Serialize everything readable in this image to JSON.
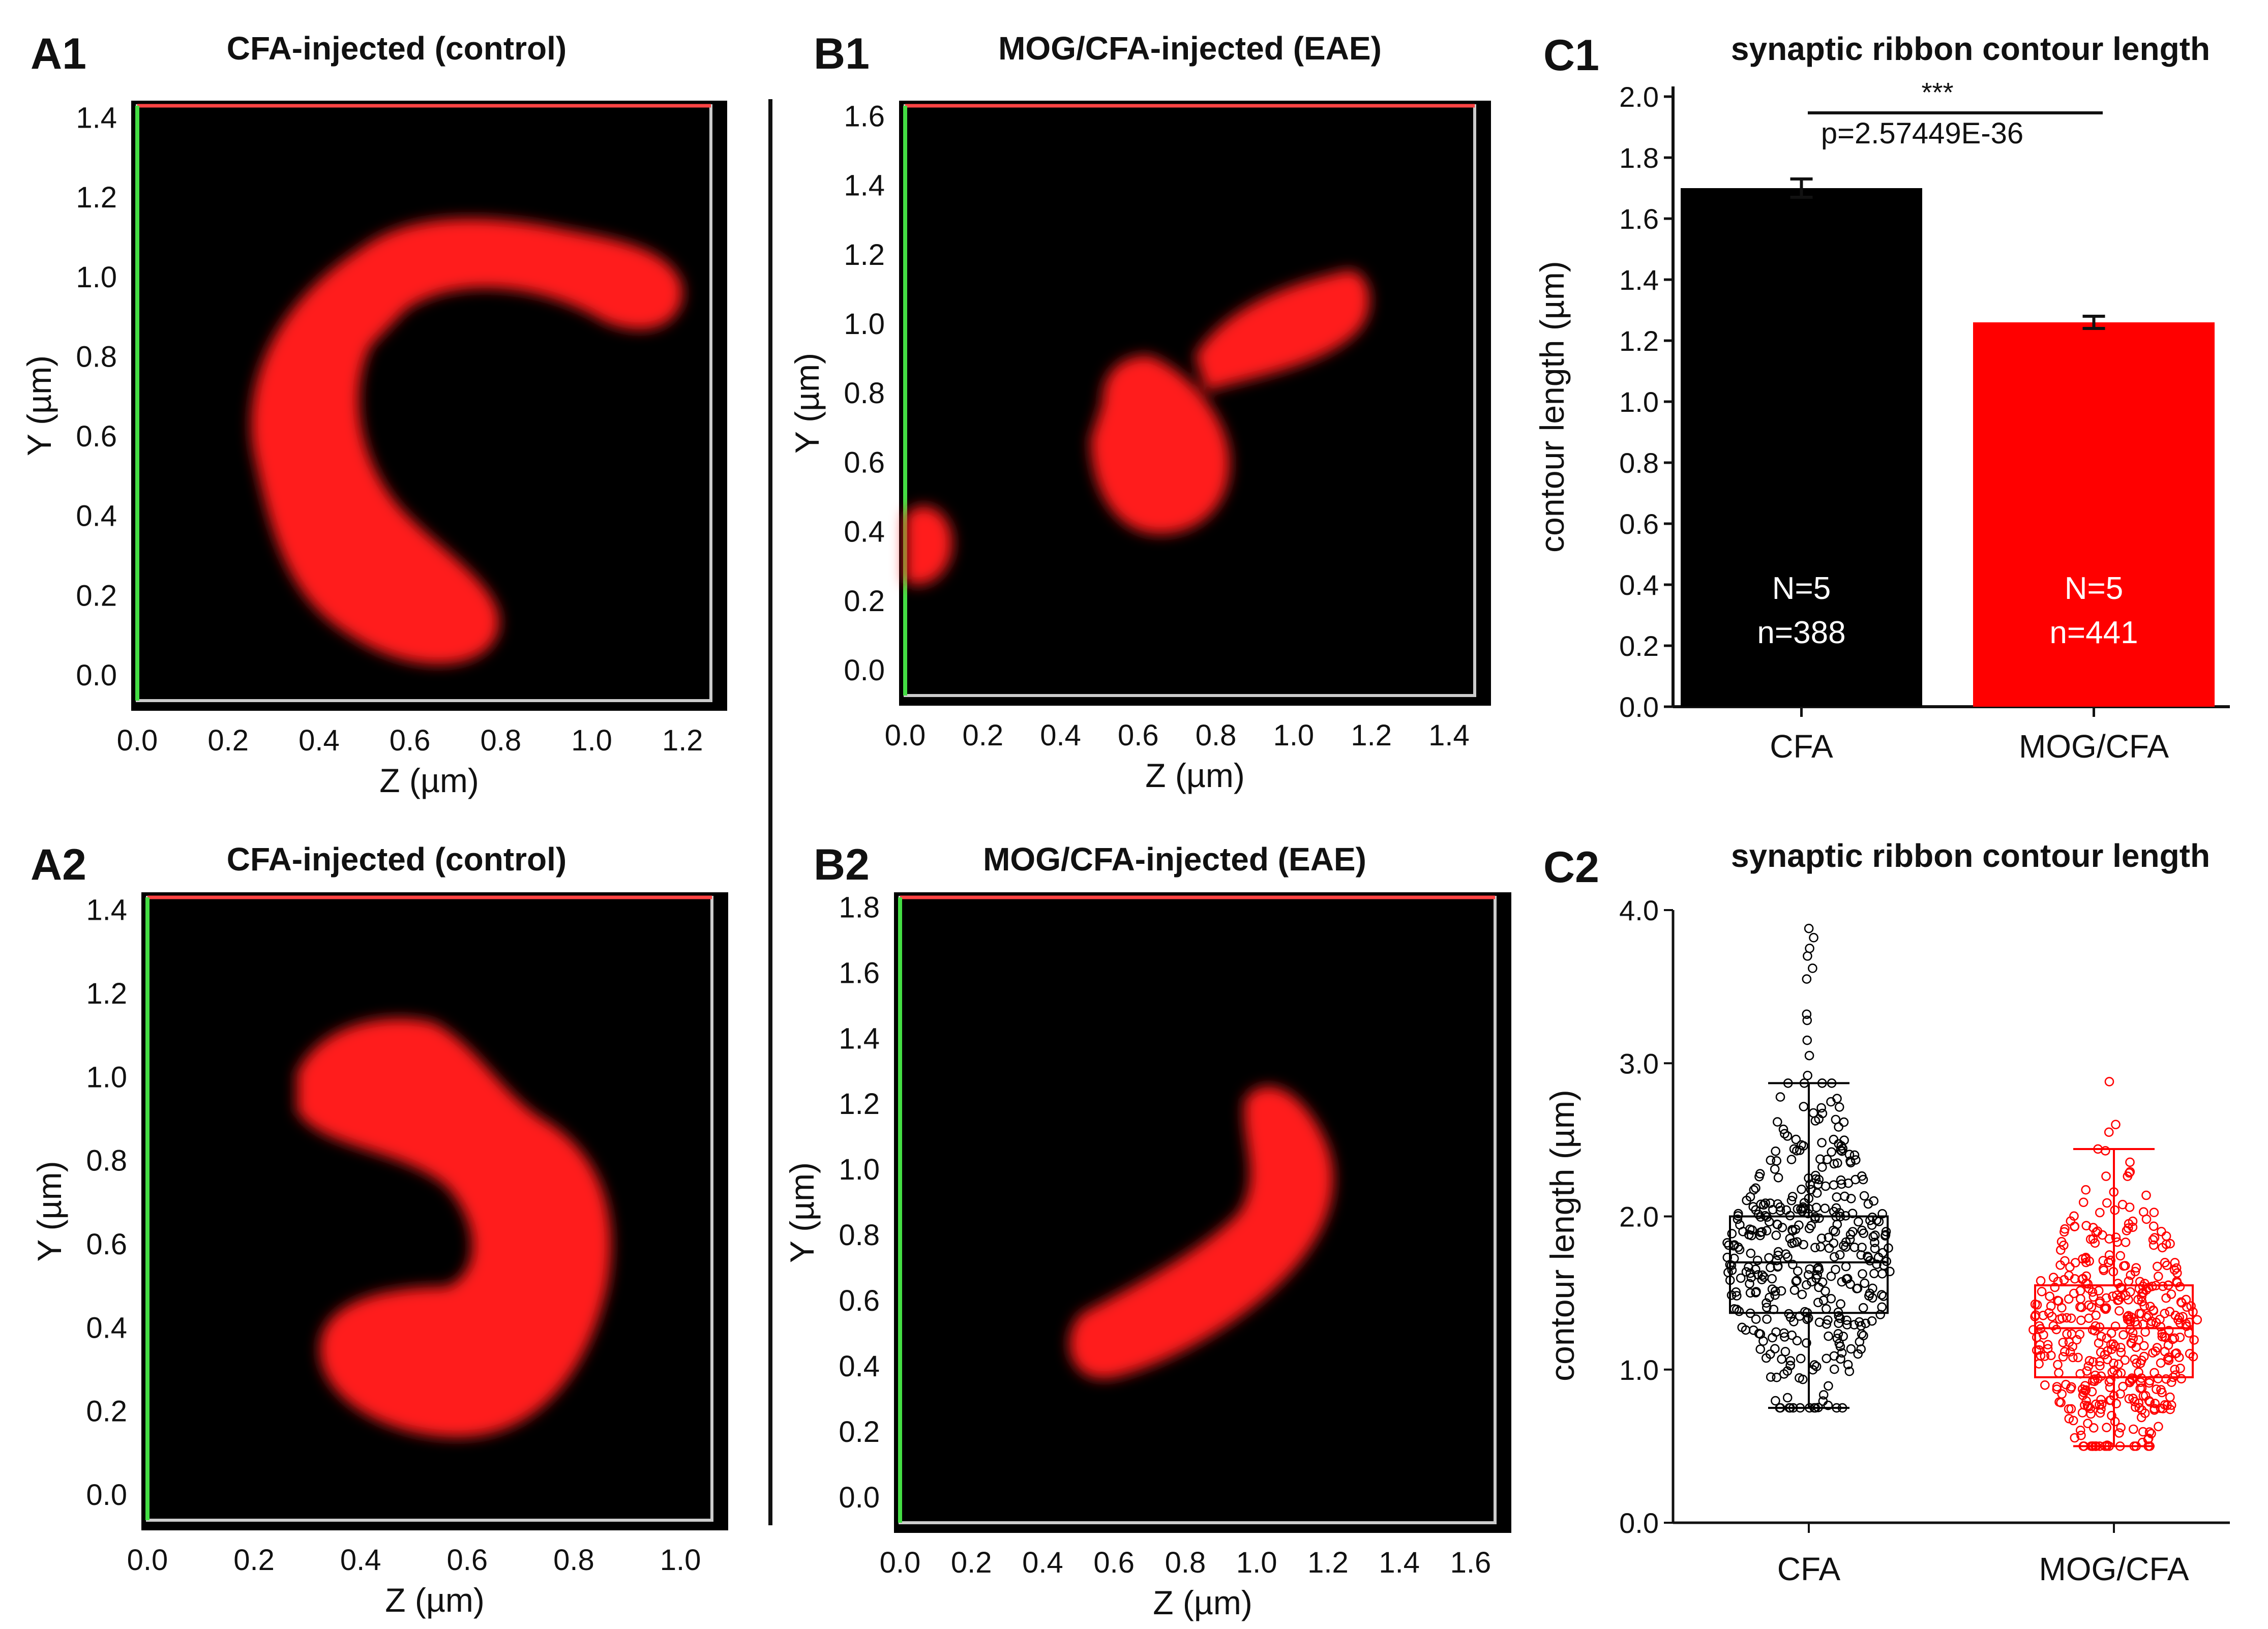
{
  "colors": {
    "background": "#ffffff",
    "image_bg": "#000000",
    "ribbon": "#ff1a1a",
    "axis_y_line": "#44dd44",
    "axis_x_line": "#ff4444",
    "frame": "#cccccc",
    "cfa": "#000000",
    "mog": "#ff0000",
    "ink": "#111111"
  },
  "panels": {
    "A1": {
      "label": "A1",
      "title": "CFA-injected (control)",
      "xlabel": "Z (µm)",
      "ylabel": "Y (µm)",
      "xticks": [
        "0.0",
        "0.2",
        "0.4",
        "0.6",
        "0.8",
        "1.0",
        "1.2"
      ],
      "yticks": [
        "0.0",
        "0.2",
        "0.4",
        "0.6",
        "0.8",
        "1.0",
        "1.2",
        "1.4"
      ]
    },
    "A2": {
      "label": "A2",
      "title": "CFA-injected (control)",
      "xlabel": "Z (µm)",
      "ylabel": "Y (µm)",
      "xticks": [
        "0.0",
        "0.2",
        "0.4",
        "0.6",
        "0.8",
        "1.0"
      ],
      "yticks": [
        "0.0",
        "0.2",
        "0.4",
        "0.6",
        "0.8",
        "1.0",
        "1.2",
        "1.4"
      ]
    },
    "B1": {
      "label": "B1",
      "title": "MOG/CFA-injected (EAE)",
      "xlabel": "Z (µm)",
      "ylabel": "Y (µm)",
      "xticks": [
        "0.0",
        "0.2",
        "0.4",
        "0.6",
        "0.8",
        "1.0",
        "1.2",
        "1.4"
      ],
      "yticks": [
        "0.0",
        "0.2",
        "0.4",
        "0.6",
        "0.8",
        "1.0",
        "1.2",
        "1.4",
        "1.6"
      ]
    },
    "B2": {
      "label": "B2",
      "title": "MOG/CFA-injected (EAE)",
      "xlabel": "Z (µm)",
      "ylabel": "Y (µm)",
      "xticks": [
        "0.0",
        "0.2",
        "0.4",
        "0.6",
        "0.8",
        "1.0",
        "1.2",
        "1.4",
        "1.6"
      ],
      "yticks": [
        "0.0",
        "0.2",
        "0.4",
        "0.6",
        "0.8",
        "1.0",
        "1.2",
        "1.4",
        "1.6",
        "1.8"
      ]
    }
  },
  "chart_data": [
    {
      "id": "C1",
      "label": "C1",
      "type": "bar",
      "title": "synaptic ribbon contour length",
      "ylabel": "contour length (µm)",
      "ylim": [
        0,
        2.0
      ],
      "yticks": [
        "0.0",
        "0.2",
        "0.4",
        "0.6",
        "0.8",
        "1.0",
        "1.2",
        "1.4",
        "1.6",
        "1.8",
        "2.0"
      ],
      "categories": [
        "CFA",
        "MOG/CFA"
      ],
      "values": [
        1.7,
        1.26
      ],
      "errors": [
        0.03,
        0.02
      ],
      "bar_labels": [
        [
          "N=5",
          "n=388"
        ],
        [
          "N=5",
          "n=441"
        ]
      ],
      "significance": "***",
      "pvalue": "p=2.57449E-36"
    },
    {
      "id": "C2",
      "label": "C2",
      "type": "scatter",
      "title": "synaptic ribbon contour length",
      "ylabel": "contour length (µm)",
      "ylim": [
        0,
        4.0
      ],
      "yticks": [
        "0.0",
        "1.0",
        "2.0",
        "3.0",
        "4.0"
      ],
      "categories": [
        "CFA",
        "MOG/CFA"
      ],
      "boxes": [
        {
          "name": "CFA",
          "q1": 1.37,
          "median": 1.7,
          "q3": 2.0,
          "whisker_low": 0.75,
          "whisker_high": 2.87,
          "n": 388
        },
        {
          "name": "MOG/CFA",
          "q1": 0.95,
          "median": 1.27,
          "q3": 1.55,
          "whisker_low": 0.5,
          "whisker_high": 2.44,
          "n": 441
        }
      ],
      "outliers": [
        [
          2.92,
          3.05,
          3.15,
          3.28,
          3.32,
          3.55,
          3.62,
          3.7,
          3.75,
          3.82,
          3.88
        ],
        [
          2.55,
          2.6,
          2.88
        ]
      ]
    }
  ]
}
